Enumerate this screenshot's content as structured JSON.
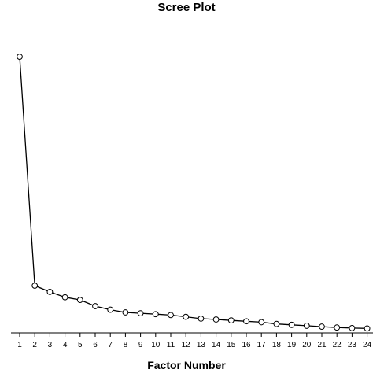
{
  "chart_data": {
    "type": "line",
    "title": "Scree Plot",
    "xlabel": "Factor Number",
    "ylabel": "",
    "x": [
      1,
      2,
      3,
      4,
      5,
      6,
      7,
      8,
      9,
      10,
      11,
      12,
      13,
      14,
      15,
      16,
      17,
      18,
      19,
      20,
      21,
      22,
      23,
      24
    ],
    "series": [
      {
        "values": [
          15.5,
          2.65,
          2.3,
          2.0,
          1.85,
          1.5,
          1.3,
          1.15,
          1.1,
          1.05,
          1.0,
          0.9,
          0.8,
          0.75,
          0.7,
          0.65,
          0.6,
          0.5,
          0.45,
          0.4,
          0.35,
          0.3,
          0.27,
          0.25
        ]
      }
    ],
    "tick_labels": [
      "1",
      "2",
      "3",
      "4",
      "5",
      "6",
      "7",
      "8",
      "9",
      "10",
      "11",
      "12",
      "13",
      "14",
      "15",
      "16",
      "17",
      "18",
      "19",
      "20",
      "21",
      "22",
      "23",
      "24"
    ],
    "ylim": [
      0,
      17.8
    ],
    "grid": false,
    "marker": "open-circle",
    "line_color": "#000000"
  }
}
